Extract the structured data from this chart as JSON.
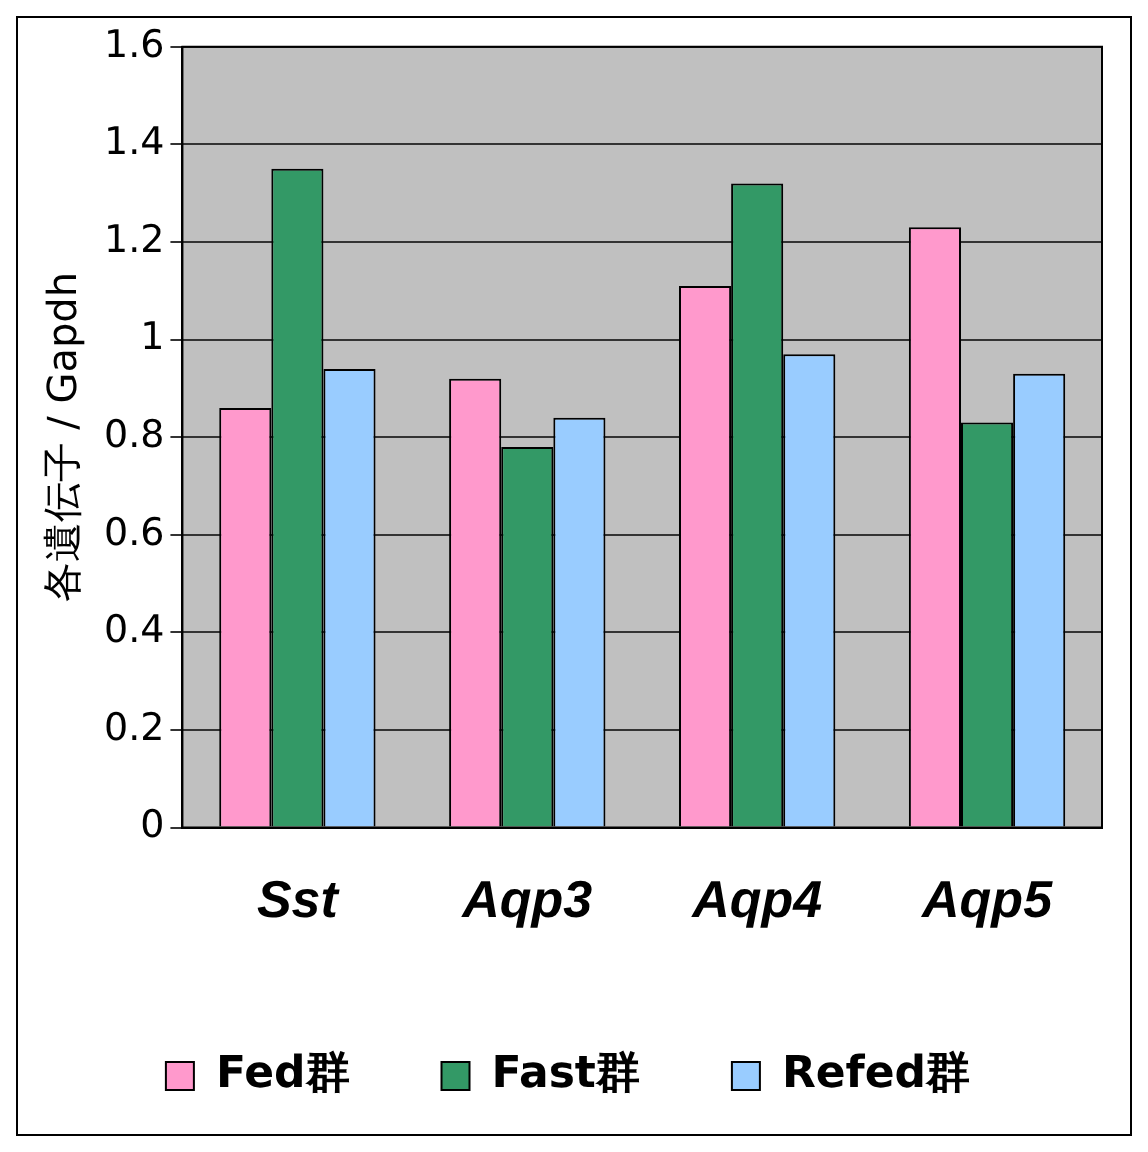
{
  "chart_data": {
    "type": "bar",
    "ylabel": "各遺伝子 / Gapdh",
    "categories": [
      "Sst",
      "Aqp3",
      "Aqp4",
      "Aqp5"
    ],
    "series": [
      {
        "name": "Fed群",
        "color": "#ff99cc",
        "values": [
          0.86,
          0.92,
          1.11,
          1.23
        ]
      },
      {
        "name": "Fast群",
        "color": "#339966",
        "values": [
          1.35,
          0.78,
          1.32,
          0.83
        ]
      },
      {
        "name": "Refed群",
        "color": "#99ccff",
        "values": [
          0.94,
          0.84,
          0.97,
          0.93
        ]
      }
    ],
    "ylim": [
      0,
      1.6
    ],
    "yticks": [
      0,
      0.2,
      0.4,
      0.6,
      0.8,
      1,
      1.2,
      1.4,
      1.6
    ],
    "grid": "y",
    "legend": "bottom"
  }
}
